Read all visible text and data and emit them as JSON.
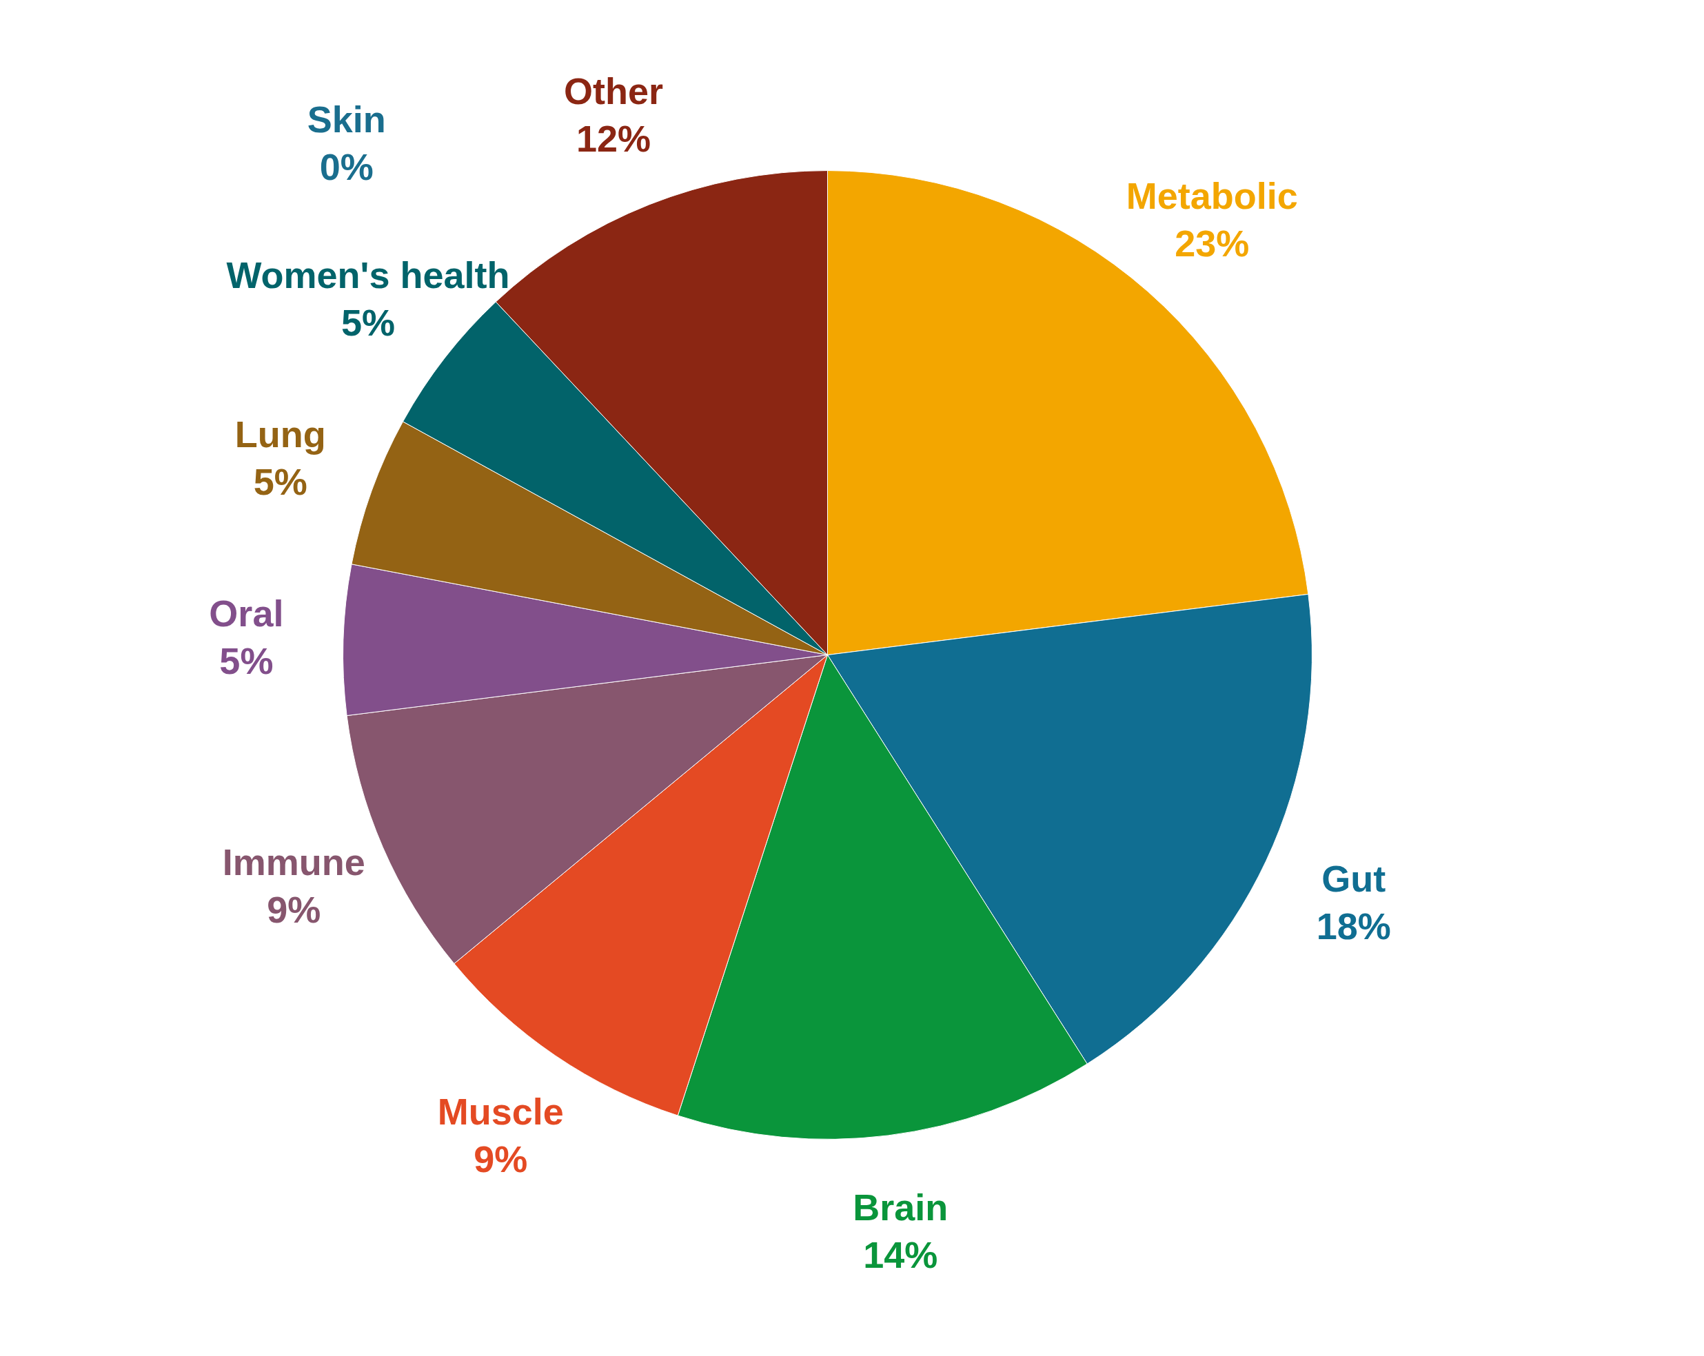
{
  "chart_data": {
    "type": "pie",
    "categories": [
      "Metabolic",
      "Gut",
      "Brain",
      "Muscle",
      "Immune",
      "Oral",
      "Lung",
      "Women's health",
      "Skin",
      "Other"
    ],
    "values": [
      23,
      18,
      14,
      9,
      9,
      5,
      5,
      5,
      0,
      12
    ],
    "colors": [
      "#f3a600",
      "#106e92",
      "#0a953b",
      "#e44a23",
      "#87566e",
      "#824f8b",
      "#946314",
      "#02636a",
      "#1a6e8e",
      "#8b2613"
    ],
    "value_labels": [
      "23%",
      "18%",
      "14%",
      "9%",
      "9%",
      "5%",
      "5%",
      "5%",
      "0%",
      "12%"
    ]
  }
}
